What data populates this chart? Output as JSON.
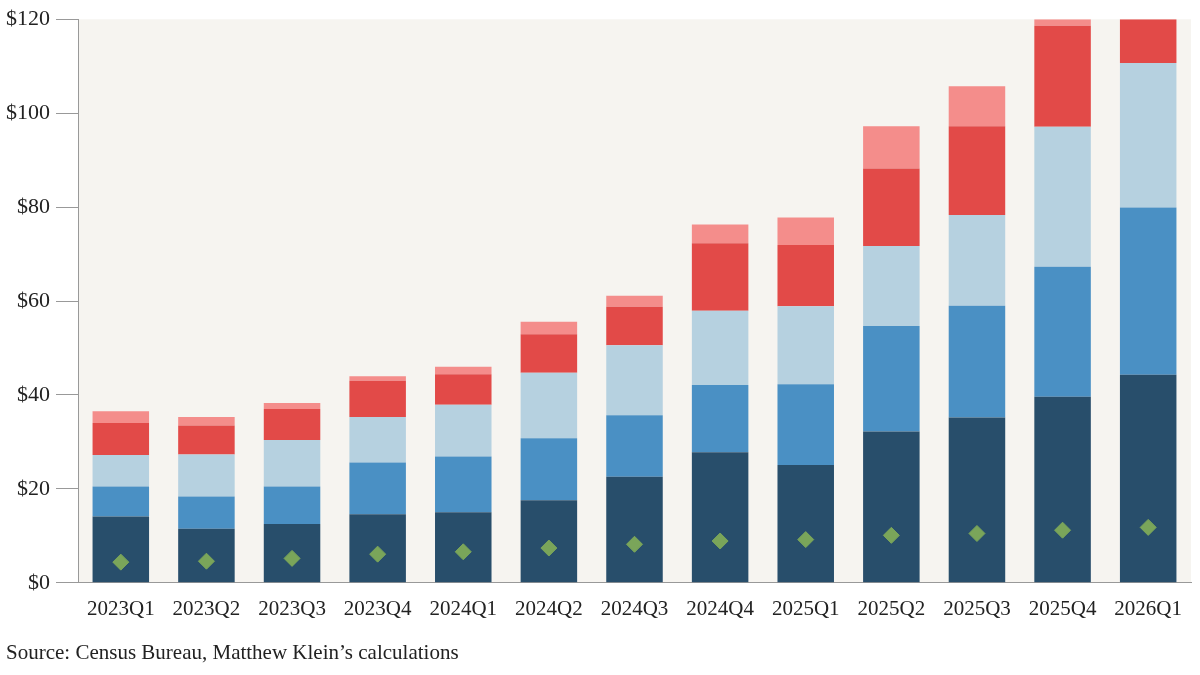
{
  "chart_data": {
    "type": "bar",
    "stacked": true,
    "categories": [
      "2023Q1",
      "2023Q2",
      "2023Q3",
      "2023Q4",
      "2024Q1",
      "2024Q2",
      "2024Q3",
      "2024Q4",
      "2025Q1",
      "2025Q2",
      "2025Q3",
      "2025Q4",
      "2026Q1"
    ],
    "series": [
      {
        "color": "#284e6b",
        "values": [
          14.1,
          11.5,
          12.5,
          14.6,
          15.0,
          17.6,
          22.6,
          27.8,
          25.1,
          32.2,
          35.2,
          39.6,
          44.3
        ]
      },
      {
        "color": "#4a90c4",
        "values": [
          6.4,
          6.9,
          8.0,
          11.0,
          11.9,
          13.2,
          13.1,
          14.3,
          17.2,
          22.5,
          23.8,
          27.7,
          35.6
        ]
      },
      {
        "color": "#b6d1e0",
        "values": [
          6.7,
          8.9,
          9.9,
          9.7,
          11.0,
          13.9,
          14.9,
          15.8,
          16.6,
          17.0,
          19.3,
          29.8,
          30.8
        ]
      },
      {
        "color": "#e24a48",
        "values": [
          6.8,
          6.2,
          6.6,
          7.7,
          6.5,
          8.2,
          8.2,
          14.4,
          13.0,
          16.5,
          18.9,
          21.5,
          9.3
        ]
      },
      {
        "color": "#f48d8b",
        "values": [
          2.5,
          1.8,
          1.3,
          1.0,
          1.6,
          2.7,
          2.3,
          4.0,
          5.9,
          9.0,
          8.5,
          1.4,
          null
        ]
      },
      {
        "type": "scatter",
        "marker": "diamond",
        "color": "#7aa55a",
        "x": [
          "2023Q1",
          "2023Q2",
          "2023Q3",
          "2023Q4",
          "2024Q1",
          "2024Q2",
          "2024Q3",
          "2024Q4",
          "2025Q1",
          "2025Q2",
          "2025Q3",
          "2025Q4",
          "2026Q1"
        ],
        "values": [
          4.4,
          4.6,
          5.2,
          6.1,
          6.6,
          7.4,
          8.2,
          8.9,
          9.2,
          10.1,
          10.5,
          11.2,
          11.8
        ]
      }
    ],
    "ylim": [
      0,
      120
    ],
    "yticks": [
      {
        "value": 0,
        "label": "$0"
      },
      {
        "value": 20,
        "label": "$20"
      },
      {
        "value": 40,
        "label": "$40"
      },
      {
        "value": 60,
        "label": "$60"
      },
      {
        "value": 80,
        "label": "$80"
      },
      {
        "value": 100,
        "label": "$100"
      },
      {
        "value": 120,
        "label": "$120"
      }
    ],
    "grid": false,
    "legend": false,
    "annotations": [
      "Source: Census Bureau, Matthew Klein’s calculations"
    ]
  }
}
